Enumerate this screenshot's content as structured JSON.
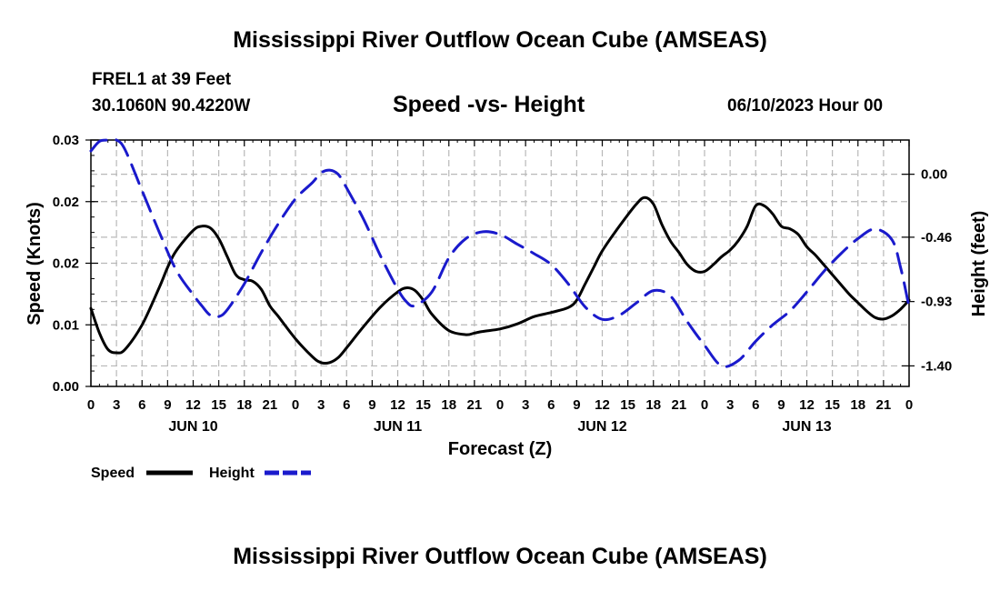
{
  "header": {
    "title": "Mississippi River Outflow Ocean Cube (AMSEAS)",
    "station": "FREL1 at 39 Feet",
    "coords": "30.1060N  90.4220W",
    "subtitle": "Speed -vs- Height",
    "datetime": "06/10/2023 Hour 00"
  },
  "footer": {
    "title": "Mississippi River Outflow Ocean Cube (AMSEAS)"
  },
  "chart_data": {
    "type": "line",
    "title": "Speed -vs- Height",
    "xlabel": "Forecast (Z)",
    "ylabel": "Speed (Knots)",
    "y2label": "Height (feet)",
    "grid": true,
    "legend_placement": "bottom-left",
    "x_range_hours": [
      0,
      96
    ],
    "x_tick_step_hours": 3,
    "x_tick_labels": [
      "0",
      "3",
      "6",
      "9",
      "12",
      "15",
      "18",
      "21",
      "0",
      "3",
      "6",
      "9",
      "12",
      "15",
      "18",
      "21",
      "0",
      "3",
      "6",
      "9",
      "12",
      "15",
      "18",
      "21",
      "0",
      "3",
      "6",
      "9",
      "12",
      "15",
      "18",
      "21",
      "0"
    ],
    "x_day_labels": [
      {
        "label": "JUN 10",
        "hour": 12
      },
      {
        "label": "JUN 11",
        "hour": 36
      },
      {
        "label": "JUN 12",
        "hour": 60
      },
      {
        "label": "JUN 13",
        "hour": 84
      }
    ],
    "y_left": {
      "range": [
        0,
        0.03
      ],
      "ticks": [
        0,
        0.0075,
        0.015,
        0.0225,
        0.03
      ],
      "tick_labels": [
        "0.00",
        "0.01",
        "0.02",
        "0.02",
        "0.03"
      ]
    },
    "y_right": {
      "range": [
        -1.55,
        0.25
      ],
      "ticks": [
        -1.4,
        -0.93,
        -0.46,
        0.0
      ],
      "tick_labels": [
        "-1.40",
        "-0.93",
        "-0.46",
        "0.00"
      ]
    },
    "series": [
      {
        "name": "Speed",
        "axis": "left",
        "color": "#000000",
        "dash": "solid",
        "x": [
          0,
          1,
          2,
          3,
          4,
          6,
          8,
          9,
          10,
          12,
          13,
          14,
          15,
          16,
          17,
          18,
          19,
          20,
          21,
          22,
          24,
          26,
          27,
          28,
          29,
          30,
          32,
          34,
          36,
          37,
          38,
          39,
          40,
          42,
          44,
          45,
          46,
          48,
          50,
          52,
          54,
          56,
          57,
          58,
          59,
          60,
          62,
          64,
          65,
          66,
          67,
          68,
          69,
          70,
          71,
          72,
          73,
          74,
          75,
          76,
          77,
          78,
          79,
          80,
          81,
          82,
          83,
          84,
          85,
          86,
          87,
          88,
          89,
          90,
          91,
          92,
          93,
          94,
          95,
          96
        ],
        "y": [
          0.0095,
          0.0065,
          0.0045,
          0.0041,
          0.0045,
          0.0075,
          0.012,
          0.0145,
          0.0165,
          0.019,
          0.0195,
          0.0193,
          0.018,
          0.0158,
          0.0136,
          0.013,
          0.0128,
          0.0118,
          0.0098,
          0.0085,
          0.0058,
          0.0036,
          0.0029,
          0.0029,
          0.0035,
          0.0047,
          0.0073,
          0.0097,
          0.0115,
          0.012,
          0.0117,
          0.0105,
          0.0088,
          0.0068,
          0.0063,
          0.0065,
          0.0067,
          0.007,
          0.0076,
          0.0085,
          0.009,
          0.0096,
          0.0105,
          0.0125,
          0.0145,
          0.0165,
          0.0195,
          0.0222,
          0.023,
          0.0222,
          0.0197,
          0.0177,
          0.0163,
          0.0148,
          0.014,
          0.014,
          0.0148,
          0.0158,
          0.0166,
          0.0178,
          0.0195,
          0.022,
          0.022,
          0.021,
          0.0195,
          0.0192,
          0.0185,
          0.017,
          0.016,
          0.0148,
          0.0136,
          0.0124,
          0.0112,
          0.0102,
          0.0092,
          0.0084,
          0.0082,
          0.0086,
          0.0094,
          0.0105
        ]
      },
      {
        "name": "Height",
        "axis": "right",
        "color": "#1a1acc",
        "dash": "dashed",
        "x": [
          0,
          1,
          2,
          3,
          4,
          6,
          8,
          10,
          12,
          13,
          14,
          15,
          16,
          18,
          20,
          22,
          24,
          26,
          27,
          28,
          29,
          30,
          32,
          34,
          36,
          37,
          38,
          40,
          42,
          44,
          46,
          48,
          50,
          52,
          54,
          56,
          58,
          60,
          62,
          64,
          66,
          68,
          70,
          72,
          74,
          76,
          78,
          80,
          82,
          84,
          86,
          88,
          90,
          92,
          94,
          95,
          96
        ],
        "y": [
          0.17,
          0.24,
          0.28,
          0.26,
          0.18,
          -0.12,
          -0.42,
          -0.7,
          -0.88,
          -0.96,
          -1.03,
          -1.04,
          -0.99,
          -0.8,
          -0.57,
          -0.36,
          -0.18,
          -0.06,
          0.01,
          0.03,
          0.0,
          -0.1,
          -0.33,
          -0.6,
          -0.84,
          -0.93,
          -0.96,
          -0.86,
          -0.61,
          -0.47,
          -0.42,
          -0.44,
          -0.51,
          -0.58,
          -0.66,
          -0.8,
          -0.97,
          -1.06,
          -1.03,
          -0.94,
          -0.85,
          -0.89,
          -1.08,
          -1.25,
          -1.4,
          -1.36,
          -1.22,
          -1.1,
          -1.0,
          -0.86,
          -0.71,
          -0.58,
          -0.47,
          -0.4,
          -0.48,
          -0.68,
          -0.97
        ]
      }
    ]
  },
  "legend": {
    "items": [
      {
        "label": "Speed",
        "color": "#000000",
        "dash": "solid"
      },
      {
        "label": "Height",
        "color": "#1a1acc",
        "dash": "dashed"
      }
    ]
  }
}
